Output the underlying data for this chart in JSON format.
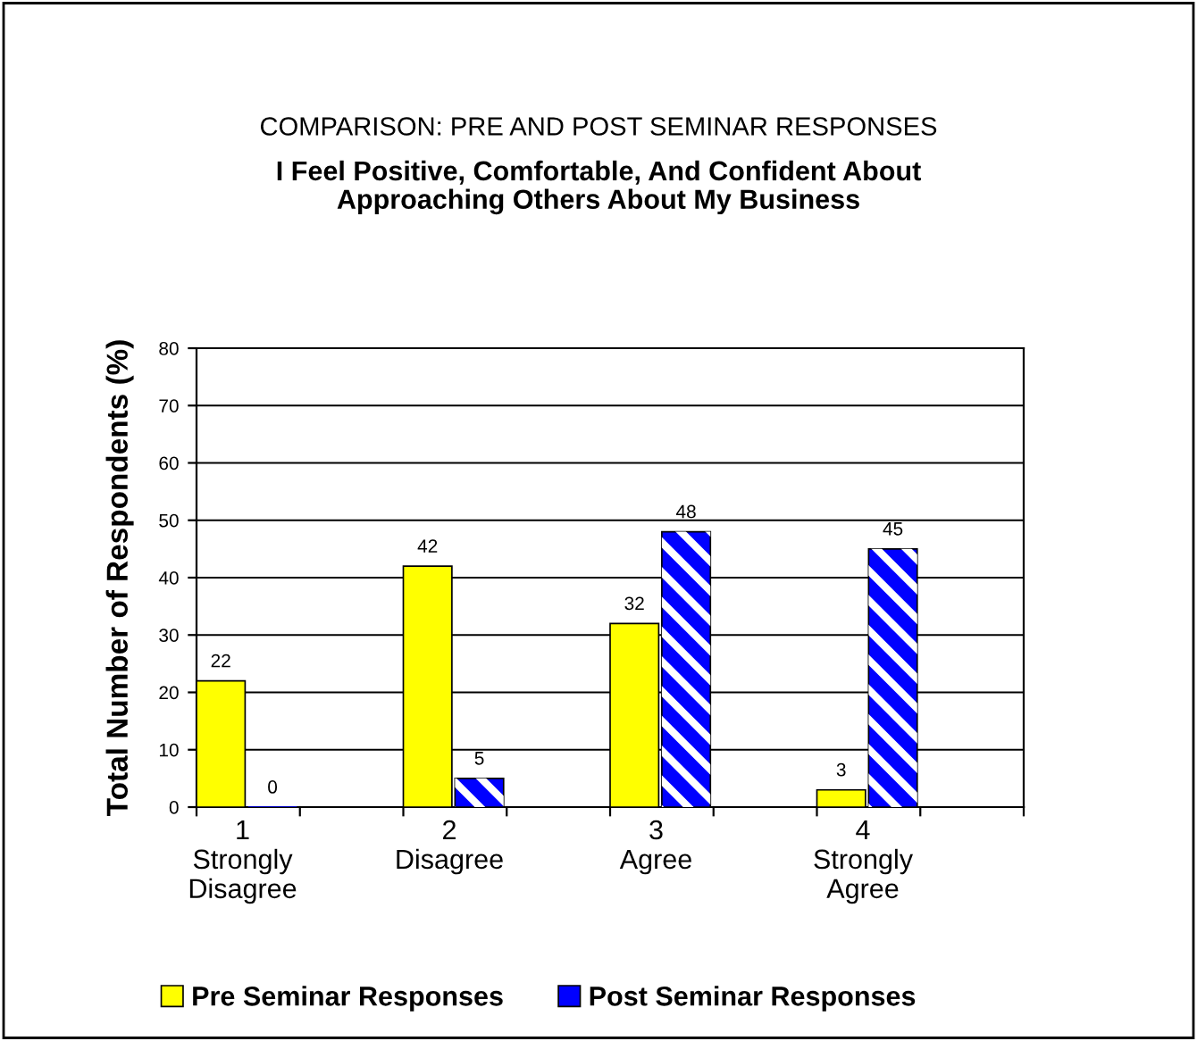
{
  "chart_data": {
    "type": "bar",
    "title": "COMPARISON: PRE AND POST SEMINAR RESPONSES",
    "subtitle": "I Feel Positive, Comfortable, And Confident About\nApproaching Others About My Business",
    "ylabel": "Total Number of Respondents (%)",
    "categories": [
      "1\nStrongly\nDisagree",
      "2\nDisagree",
      "3\nAgree",
      "4\nStrongly\nAgree"
    ],
    "series": [
      {
        "name": "Pre Seminar Responses",
        "color": "#ffff00",
        "values": [
          22,
          42,
          32,
          3
        ]
      },
      {
        "name": "Post Seminar Responses",
        "color": "#0000ff",
        "values": [
          0,
          5,
          48,
          45
        ]
      }
    ],
    "ylim": [
      0,
      80
    ],
    "yticks": [
      0,
      10,
      20,
      30,
      40,
      50,
      60,
      70,
      80
    ],
    "grid": "y",
    "legend": "bottom",
    "data_labels": true
  }
}
